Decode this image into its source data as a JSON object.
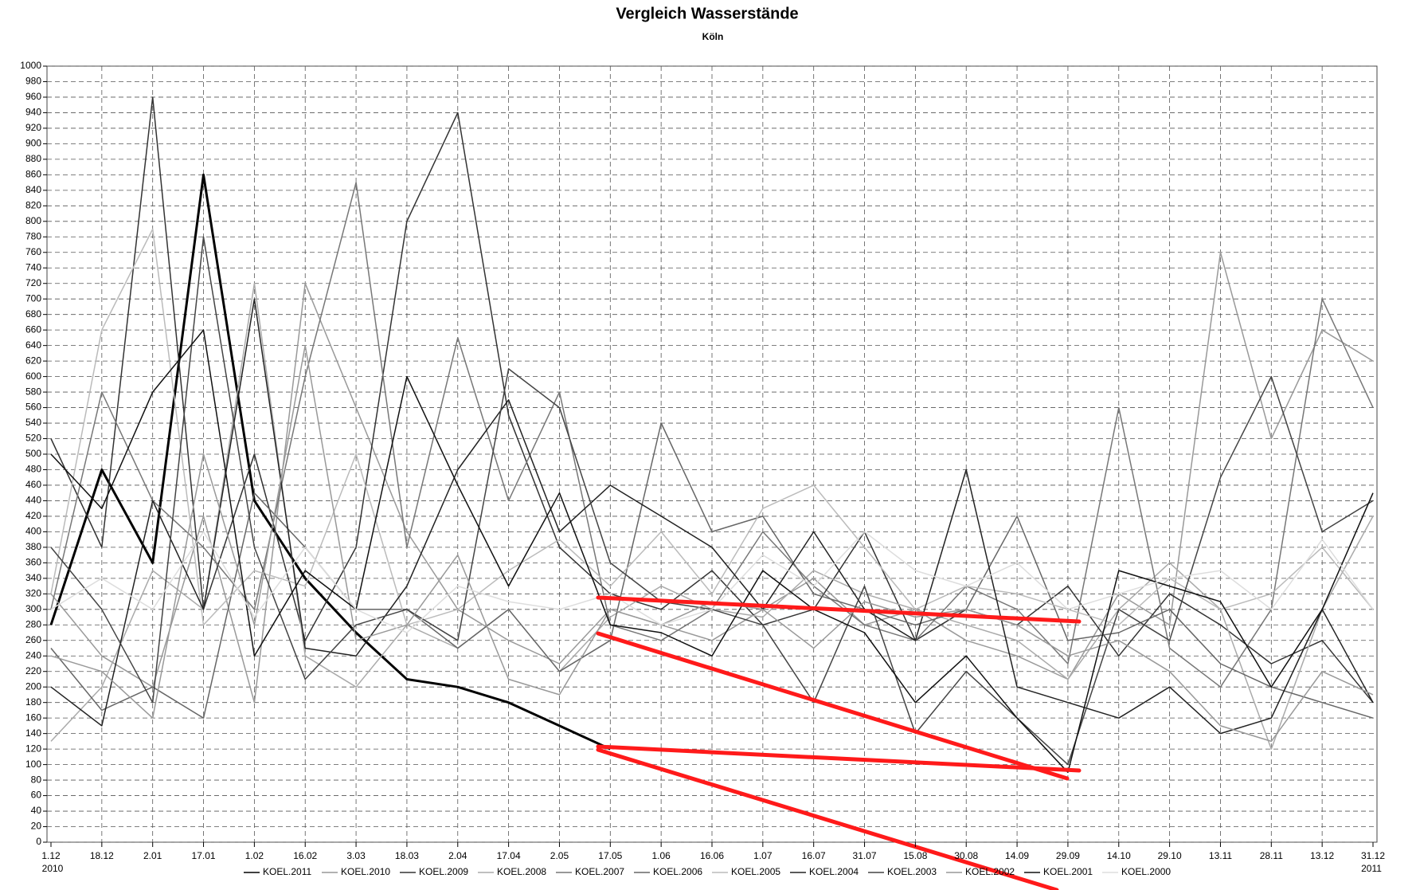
{
  "chart_data": {
    "type": "line",
    "title": "Vergleich Wasserstände",
    "subtitle": "Köln",
    "categories": [
      "1.12",
      "18.12",
      "2.01",
      "17.01",
      "1.02",
      "16.02",
      "3.03",
      "18.03",
      "2.04",
      "17.04",
      "2.05",
      "17.05",
      "1.06",
      "16.06",
      "1.07",
      "16.07",
      "31.07",
      "15.08",
      "30.08",
      "14.09",
      "29.09",
      "14.10",
      "29.10",
      "13.11",
      "28.11",
      "13.12",
      "31.12"
    ],
    "x_year_labels": [
      "2010",
      "2011"
    ],
    "ylim": [
      0,
      1000
    ],
    "yticks": [
      0,
      20,
      40,
      60,
      80,
      100,
      120,
      140,
      160,
      180,
      200,
      220,
      240,
      260,
      280,
      300,
      320,
      340,
      360,
      380,
      400,
      420,
      440,
      460,
      480,
      500,
      520,
      540,
      560,
      580,
      600,
      620,
      640,
      660,
      680,
      700,
      720,
      740,
      760,
      780,
      800,
      820,
      840,
      860,
      880,
      900,
      920,
      940,
      960,
      980,
      1000
    ],
    "grid": true,
    "legend": "bottom",
    "series": [
      {
        "name": "KOEL.2011",
        "color": "#000000",
        "width": 3,
        "values": [
          280,
          480,
          360,
          860,
          440,
          340,
          270,
          210,
          200,
          180,
          150,
          120,
          null,
          null,
          null,
          null,
          null,
          null,
          null,
          null,
          null,
          null,
          null,
          null,
          null,
          null,
          null
        ]
      },
      {
        "name": "KOEL.2010",
        "color": "#999999",
        "width": 1.5,
        "values": [
          320,
          240,
          200,
          420,
          180,
          720,
          560,
          400,
          300,
          260,
          230,
          300,
          280,
          260,
          300,
          340,
          280,
          300,
          260,
          240,
          210,
          320,
          280,
          760,
          520,
          660,
          620
        ]
      },
      {
        "name": "KOEL.2009",
        "color": "#333333",
        "width": 1.5,
        "values": [
          520,
          380,
          960,
          300,
          500,
          260,
          380,
          800,
          940,
          550,
          380,
          320,
          300,
          350,
          280,
          300,
          400,
          260,
          300,
          280,
          330,
          240,
          320,
          280,
          230,
          260,
          180
        ]
      },
      {
        "name": "KOEL.2008",
        "color": "#aaaaaa",
        "width": 1.5,
        "values": [
          130,
          200,
          350,
          300,
          720,
          240,
          200,
          280,
          250,
          300,
          220,
          290,
          330,
          300,
          290,
          350,
          320,
          300,
          280,
          260,
          210,
          300,
          360,
          300,
          120,
          300,
          420
        ]
      },
      {
        "name": "KOEL.2007",
        "color": "#777777",
        "width": 1.5,
        "values": [
          300,
          580,
          440,
          380,
          300,
          600,
          850,
          380,
          650,
          440,
          580,
          280,
          260,
          300,
          400,
          330,
          280,
          260,
          330,
          300,
          230,
          560,
          250,
          200,
          300,
          700,
          560
        ]
      },
      {
        "name": "KOEL.2006",
        "color": "#666666",
        "width": 1.5,
        "values": [
          250,
          170,
          200,
          160,
          450,
          380,
          300,
          300,
          250,
          300,
          220,
          260,
          540,
          400,
          420,
          320,
          300,
          280,
          300,
          420,
          260,
          270,
          300,
          230,
          200,
          180,
          160
        ]
      },
      {
        "name": "KOEL.2005",
        "color": "#bbbbbb",
        "width": 1.5,
        "values": [
          320,
          660,
          790,
          280,
          350,
          330,
          500,
          280,
          300,
          350,
          390,
          330,
          400,
          320,
          430,
          460,
          380,
          300,
          330,
          320,
          300,
          280,
          340,
          300,
          320,
          380,
          300
        ]
      },
      {
        "name": "KOEL.2004",
        "color": "#222222",
        "width": 1.5,
        "values": [
          200,
          150,
          440,
          300,
          700,
          250,
          240,
          330,
          480,
          570,
          400,
          460,
          420,
          380,
          300,
          400,
          300,
          260,
          480,
          200,
          180,
          160,
          200,
          140,
          160,
          300,
          180
        ]
      },
      {
        "name": "KOEL.2003",
        "color": "#444444",
        "width": 1.5,
        "values": [
          380,
          300,
          180,
          780,
          380,
          210,
          280,
          300,
          260,
          610,
          560,
          360,
          310,
          300,
          280,
          180,
          330,
          140,
          220,
          160,
          100,
          300,
          260,
          470,
          600,
          400,
          440
        ]
      },
      {
        "name": "KOEL.2002",
        "color": "#999999",
        "width": 1.5,
        "values": [
          240,
          220,
          160,
          500,
          280,
          640,
          260,
          280,
          370,
          210,
          190,
          300,
          280,
          310,
          300,
          250,
          310,
          290,
          300,
          280,
          240,
          260,
          220,
          150,
          130,
          220,
          190
        ]
      },
      {
        "name": "KOEL.2001",
        "color": "#111111",
        "width": 1.5,
        "values": [
          500,
          430,
          580,
          660,
          240,
          350,
          300,
          600,
          460,
          330,
          450,
          280,
          270,
          240,
          350,
          300,
          270,
          180,
          240,
          160,
          90,
          350,
          330,
          310,
          200,
          300,
          450
        ]
      },
      {
        "name": "KOEL.2000",
        "color": "#dddddd",
        "width": 1.5,
        "values": [
          300,
          340,
          300,
          400,
          290,
          380,
          300,
          270,
          330,
          310,
          300,
          320,
          280,
          300,
          370,
          330,
          400,
          350,
          330,
          360,
          300,
          320,
          340,
          350,
          300,
          390,
          300
        ]
      }
    ]
  }
}
